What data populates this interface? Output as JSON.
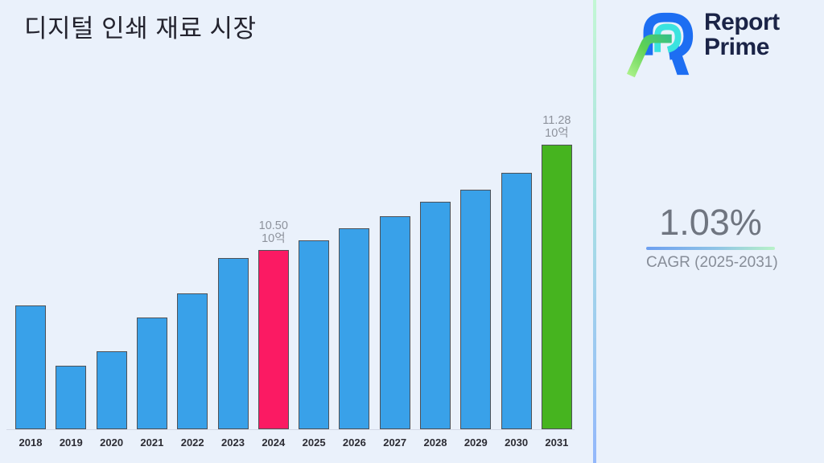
{
  "title": "디지털 인쇄 재료 시장",
  "background_color": "#eaf1fb",
  "brand": {
    "name_line1": "Report",
    "name_line2": "Prime",
    "text_color": "#1b2447",
    "mark_blue": "#1d6ef2",
    "mark_cyan": "#3be3df",
    "mark_green_light": "#aef28c",
    "mark_green_teal": "#2fbe8f"
  },
  "cagr": {
    "value": "1.03%",
    "label": "CAGR (2025-2031)",
    "underline_gradient": [
      "#6d9ff0",
      "#b8f2c8"
    ]
  },
  "divider_gradient": [
    "#c2f7d4",
    "#a8dfe4",
    "#93b7fb"
  ],
  "chart_data": {
    "type": "bar",
    "title": "디지털 인쇄 재료 시장",
    "xlabel": "",
    "ylabel": "",
    "unit_label": "10억",
    "categories": [
      "2018",
      "2019",
      "2020",
      "2021",
      "2022",
      "2023",
      "2024",
      "2025",
      "2026",
      "2027",
      "2028",
      "2029",
      "2030",
      "2031"
    ],
    "values": [
      10.09,
      9.64,
      9.75,
      10.0,
      10.18,
      10.44,
      10.5,
      10.57,
      10.66,
      10.75,
      10.86,
      10.95,
      11.07,
      11.28
    ],
    "bar_colors": [
      "#39a1e9",
      "#39a1e9",
      "#39a1e9",
      "#39a1e9",
      "#39a1e9",
      "#39a1e9",
      "#fb1a63",
      "#39a1e9",
      "#39a1e9",
      "#39a1e9",
      "#39a1e9",
      "#39a1e9",
      "#39a1e9",
      "#46b41f"
    ],
    "data_labels": [
      {
        "index": 6,
        "lines": [
          "10.50",
          "10억"
        ]
      },
      {
        "index": 13,
        "lines": [
          "11.28",
          "10억"
        ]
      }
    ],
    "ylim": [
      9.17,
      11.49
    ],
    "grid": false,
    "legend": "none",
    "default_bar_color": "#39a1e9",
    "highlight_colors": {
      "2024": "#fb1a63",
      "2031": "#46b41f"
    },
    "bar_border_color": "#4e5157",
    "axis_line_color": "#d3d9e6",
    "tick_color": "#2c2c34",
    "data_label_color": "#8d929c"
  }
}
